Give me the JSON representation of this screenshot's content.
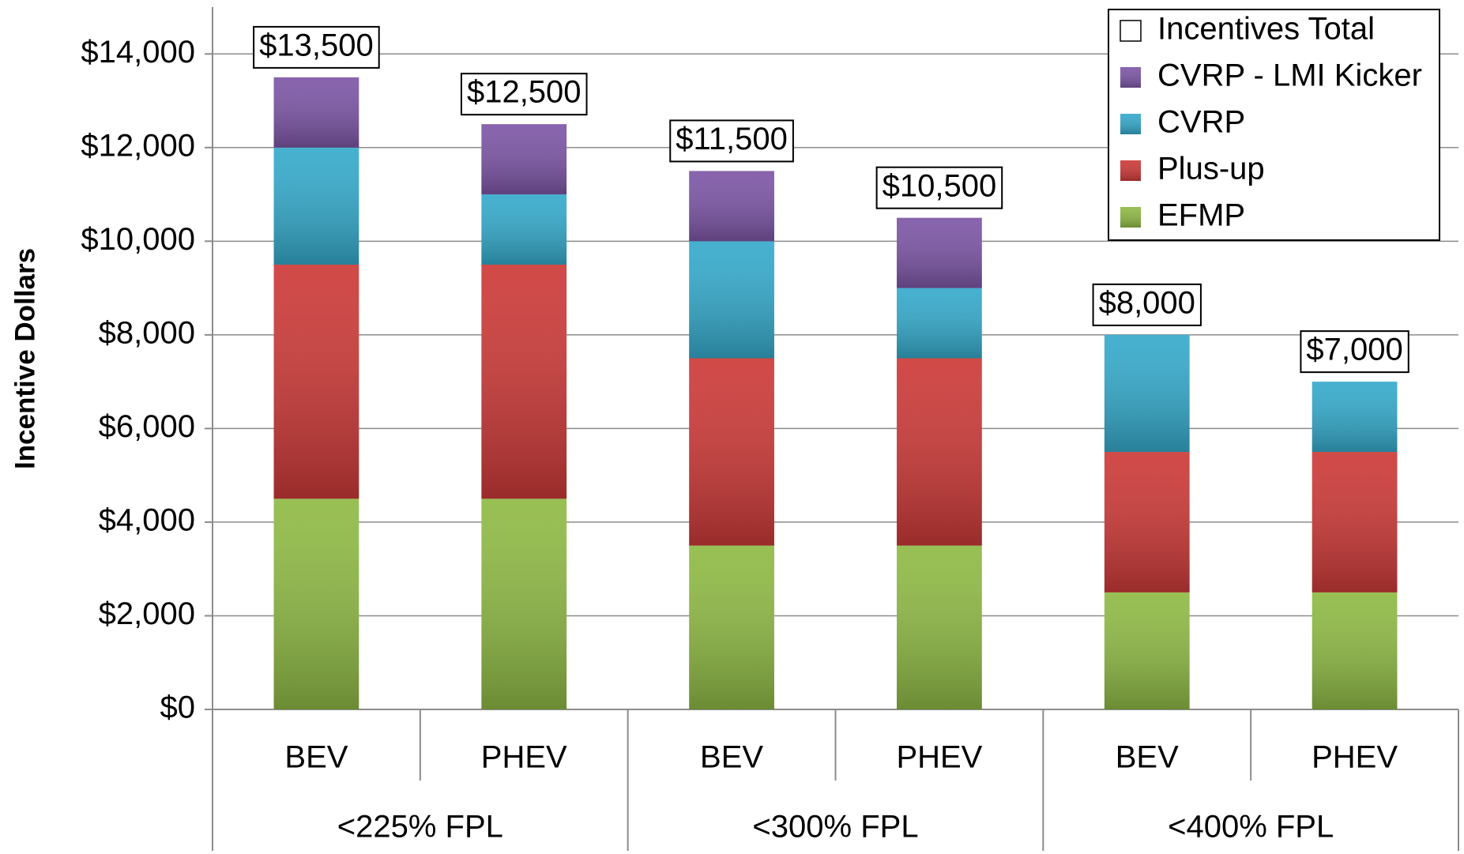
{
  "chart_data": {
    "type": "stacked_bar",
    "y_label": "Incentive Dollars",
    "categories": [
      "BEV",
      "PHEV",
      "BEV",
      "PHEV",
      "BEV",
      "PHEV"
    ],
    "groups": [
      "<225% FPL",
      "<300% FPL",
      "<400% FPL"
    ],
    "series": [
      {
        "name": "EFMP",
        "color": "#8fba45",
        "values": [
          4500,
          4500,
          3500,
          3500,
          2500,
          2500
        ]
      },
      {
        "name": "Plus-up",
        "color": "#cc3a38",
        "values": [
          5000,
          5000,
          4000,
          4000,
          3000,
          3000
        ]
      },
      {
        "name": "CVRP",
        "color": "#35aacb",
        "values": [
          2500,
          1500,
          2500,
          1500,
          2500,
          1500
        ]
      },
      {
        "name": "CVRP - LMI Kicker",
        "color": "#7d56a6",
        "values": [
          1500,
          1500,
          1500,
          1500,
          0,
          0
        ]
      }
    ],
    "totals": {
      "name": "Incentives Total",
      "color": "#ffffff",
      "values": [
        13500,
        12500,
        11500,
        10500,
        8000,
        7000
      ],
      "value_labels": [
        "$13,500",
        "$12,500",
        "$11,500",
        "$10,500",
        "$8,000",
        "$7,000"
      ]
    },
    "ylim": [
      0,
      15000
    ],
    "yticks": [
      {
        "value": 0,
        "label": "$0"
      },
      {
        "value": 2000,
        "label": "$2,000"
      },
      {
        "value": 4000,
        "label": "$4,000"
      },
      {
        "value": 6000,
        "label": "$6,000"
      },
      {
        "value": 8000,
        "label": "$8,000"
      },
      {
        "value": 10000,
        "label": "$10,000"
      },
      {
        "value": 12000,
        "label": "$12,000"
      },
      {
        "value": 14000,
        "label": "$14,000"
      }
    ],
    "grid": true,
    "legend": "top-right"
  }
}
